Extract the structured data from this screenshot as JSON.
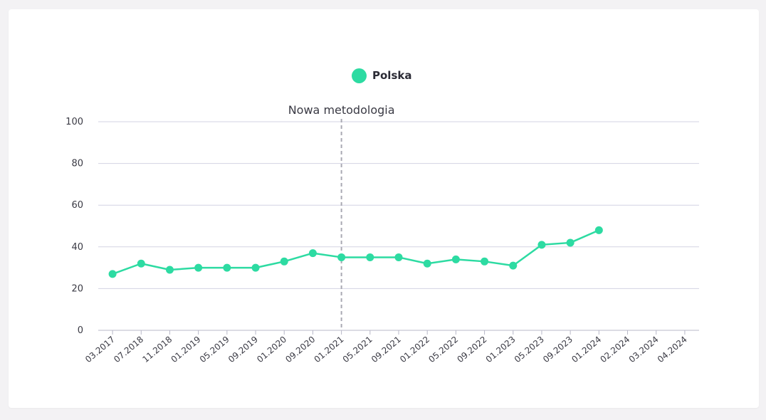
{
  "legend": {
    "series_name": "Polska",
    "color": "#2ddba2"
  },
  "chart_data": {
    "type": "line",
    "x": [
      "03.2017",
      "07.2018",
      "11.2018",
      "01.2019",
      "05.2019",
      "09.2019",
      "01.2020",
      "09.2020",
      "01.2021",
      "05.2021",
      "09.2021",
      "01.2022",
      "05.2022",
      "09.2022",
      "01.2023",
      "05.2023",
      "09.2023",
      "01.2024",
      "02.2024",
      "03.2024",
      "04.2024"
    ],
    "series": [
      {
        "name": "Polska",
        "color": "#2ddba2",
        "values": [
          27,
          32,
          29,
          30,
          30,
          30,
          33,
          37,
          35,
          35,
          35,
          32,
          34,
          33,
          31,
          41,
          42,
          48,
          null,
          null,
          null
        ]
      }
    ],
    "ylim": [
      0,
      100
    ],
    "yticks": [
      0,
      20,
      40,
      60,
      80,
      100
    ],
    "grid": true,
    "legend_position": "top-center",
    "annotations": [
      {
        "text": "Nowa metodologia",
        "x": "01.2021",
        "style": "dashed-vertical-line"
      }
    ]
  }
}
